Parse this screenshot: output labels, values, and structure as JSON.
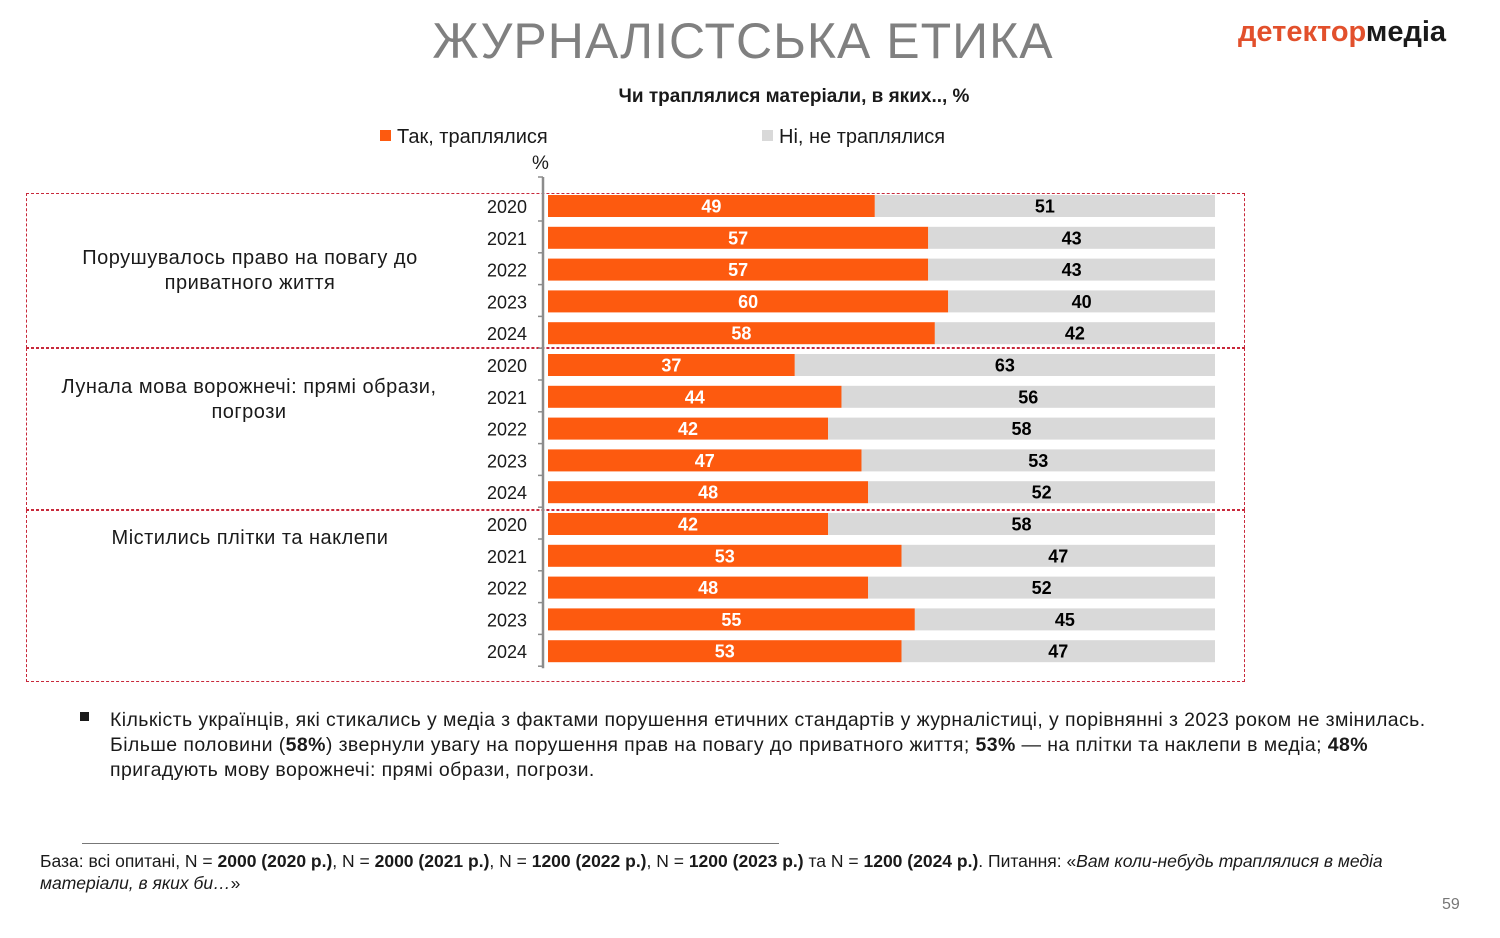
{
  "header": {
    "title": "ЖУРНАЛІСТСЬКА ЕТИКА",
    "logo_part1": "детектор",
    "logo_part2": "медіа"
  },
  "colors": {
    "yes": "#fd5a0f",
    "no": "#d9d9d9",
    "border": "#c8283a"
  },
  "chart_data": {
    "type": "bar",
    "orientation": "horizontal",
    "stacked": true,
    "title": "Чи траплялися матеріали, в яких.., %",
    "unit_label": "%",
    "legend_position": "top",
    "series_names": [
      "Так, траплялися",
      "Ні, не траплялися"
    ],
    "groups": [
      {
        "label": "Порушувалось право на повагу до приватного життя",
        "rows": [
          {
            "year": "2020",
            "yes": 49,
            "no": 51
          },
          {
            "year": "2021",
            "yes": 57,
            "no": 43
          },
          {
            "year": "2022",
            "yes": 57,
            "no": 43
          },
          {
            "year": "2023",
            "yes": 60,
            "no": 40
          },
          {
            "year": "2024",
            "yes": 58,
            "no": 42
          }
        ]
      },
      {
        "label": "Лунала мова ворожнечі: прямі образи, погрози",
        "rows": [
          {
            "year": "2020",
            "yes": 37,
            "no": 63
          },
          {
            "year": "2021",
            "yes": 44,
            "no": 56
          },
          {
            "year": "2022",
            "yes": 42,
            "no": 58
          },
          {
            "year": "2023",
            "yes": 47,
            "no": 53
          },
          {
            "year": "2024",
            "yes": 48,
            "no": 52
          }
        ]
      },
      {
        "label": "Містились плітки та наклепи",
        "rows": [
          {
            "year": "2020",
            "yes": 42,
            "no": 58
          },
          {
            "year": "2021",
            "yes": 53,
            "no": 47
          },
          {
            "year": "2022",
            "yes": 48,
            "no": 52
          },
          {
            "year": "2023",
            "yes": 55,
            "no": 45
          },
          {
            "year": "2024",
            "yes": 53,
            "no": 47
          }
        ]
      }
    ]
  },
  "summary": {
    "t1": "Кількість українців, які стикались у медіа з фактами порушення етичних стандартів у журналістиці, у порівнянні з 2023 роком не змінилась. Більше половини (",
    "b1": "58%",
    "t2": ") звернули увагу на порушення прав на повагу до приватного життя; ",
    "b2": "53%",
    "t3": " — на плітки та наклепи в медіа; ",
    "b3": "48%",
    "t4": " пригадують мову ворожнечі: прямі образи, погрози."
  },
  "footnote": {
    "p1": "База: всі опитані, N = ",
    "b1": "2000 (2020 р.)",
    "p2": ", N = ",
    "b2": "2000 (2021 р.)",
    "p3": ", N = ",
    "b3": "1200 (2022 р.)",
    "p4": ", N = ",
    "b4": "1200 (2023 р.)",
    "p5": " та N = ",
    "b5": "1200 (2024 р.)",
    "p6": ". Питання: «",
    "i1": "Вам коли-небудь траплялися в медіа матеріали, в яких би…",
    "p7": "»"
  },
  "page_number": "59"
}
